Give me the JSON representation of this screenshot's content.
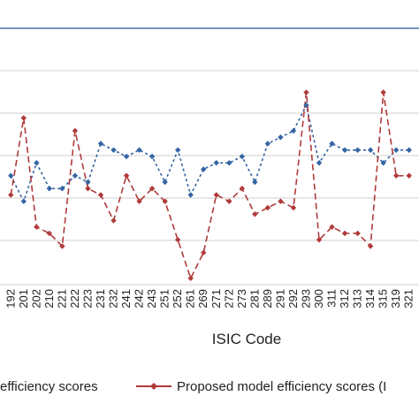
{
  "chart_data": {
    "type": "line",
    "xlabel": "ISIC Code",
    "ylabel": "",
    "title": "",
    "grid": "horizontal",
    "ylim": [
      0.65,
      1.05
    ],
    "legend_position": "bottom",
    "categories": [
      "192",
      "201",
      "202",
      "210",
      "221",
      "222",
      "223",
      "231",
      "232",
      "241",
      "242",
      "243",
      "251",
      "252",
      "261",
      "269",
      "271",
      "272",
      "273",
      "281",
      "289",
      "291",
      "292",
      "293",
      "300",
      "311",
      "312",
      "313",
      "314",
      "315",
      "319",
      "321"
    ],
    "series": [
      {
        "name": "efficiency scores",
        "color": "#3465A4",
        "style": "dotted",
        "values": [
          0.82,
          0.78,
          0.84,
          0.8,
          0.8,
          0.82,
          0.81,
          0.87,
          0.86,
          0.85,
          0.86,
          0.85,
          0.81,
          0.86,
          0.79,
          0.83,
          0.84,
          0.84,
          0.85,
          0.81,
          0.87,
          0.88,
          0.89,
          0.93,
          0.84,
          0.87,
          0.86,
          0.86,
          0.86,
          0.84,
          0.86,
          0.86
        ]
      },
      {
        "name": "Proposed model efficiency scores (",
        "color": "#B03A3A",
        "style": "dashed",
        "values": [
          0.79,
          0.91,
          0.74,
          0.73,
          0.71,
          0.89,
          0.8,
          0.79,
          0.75,
          0.82,
          0.78,
          0.8,
          0.78,
          0.72,
          0.66,
          0.7,
          0.79,
          0.78,
          0.8,
          0.76,
          0.77,
          0.78,
          0.77,
          0.95,
          0.72,
          0.74,
          0.73,
          0.73,
          0.71,
          0.95,
          0.82,
          0.82
        ]
      }
    ]
  },
  "legend": {
    "series1_label": "efficiency scores",
    "series2_label": "Proposed model efficiency scores (I"
  },
  "axis": {
    "x_title": "ISIC Code"
  }
}
